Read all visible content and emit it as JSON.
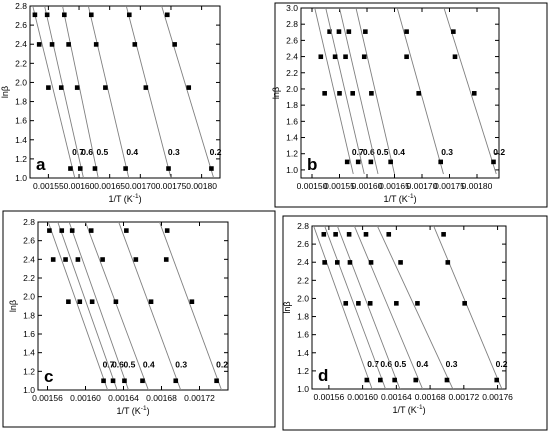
{
  "chart_data": [
    {
      "type": "scatter",
      "panel_label": "a",
      "xlabel": "1/T (K",
      "xlabel_sup": "-1",
      "xlabel_tail": ")",
      "ylabel": "lnβ",
      "xlim": [
        0.00152,
        0.00183
      ],
      "ylim": [
        1.0,
        2.8
      ],
      "xticks": [
        0.00155,
        0.0016,
        0.00165,
        0.0017,
        0.00175,
        0.0018
      ],
      "xtick_labels": [
        "0.00155",
        "0.00160",
        "0.00165",
        "0.00170",
        "0.00175",
        "0.00180"
      ],
      "yticks": [
        1.0,
        1.2,
        1.4,
        1.6,
        1.8,
        2.0,
        2.2,
        2.4,
        2.6,
        2.8
      ],
      "ytick_labels": [
        "1.0",
        "1.2",
        "1.4",
        "1.6",
        "1.8",
        "2.0",
        "2.2",
        "2.4",
        "2.6",
        "2.8"
      ],
      "series": [
        {
          "name": "0.7",
          "points": [
            [
              0.001528,
              2.708
            ],
            [
              0.001535,
              2.398
            ],
            [
              0.00155,
              1.946
            ],
            [
              0.001586,
              1.099
            ]
          ],
          "fit": [
            [
              0.001515,
              3.05
            ],
            [
              0.001595,
              0.95
            ]
          ]
        },
        {
          "name": "0.6",
          "points": [
            [
              0.001548,
              2.708
            ],
            [
              0.001556,
              2.398
            ],
            [
              0.001571,
              1.946
            ],
            [
              0.001602,
              1.099
            ]
          ],
          "fit": [
            [
              0.001535,
              3.05
            ],
            [
              0.001609,
              0.95
            ]
          ]
        },
        {
          "name": "0.5",
          "points": [
            [
              0.001576,
              2.708
            ],
            [
              0.001583,
              2.398
            ],
            [
              0.001597,
              1.946
            ],
            [
              0.001626,
              1.099
            ]
          ],
          "fit": [
            [
              0.001565,
              3.05
            ],
            [
              0.001633,
              0.95
            ]
          ]
        },
        {
          "name": "0.4",
          "points": [
            [
              0.00162,
              2.708
            ],
            [
              0.001628,
              2.398
            ],
            [
              0.001643,
              1.946
            ],
            [
              0.001676,
              1.099
            ]
          ],
          "fit": [
            [
              0.001606,
              3.05
            ],
            [
              0.001683,
              0.95
            ]
          ]
        },
        {
          "name": "0.3",
          "points": [
            [
              0.001682,
              2.708
            ],
            [
              0.001691,
              2.398
            ],
            [
              0.001709,
              1.946
            ],
            [
              0.001746,
              1.099
            ]
          ],
          "fit": [
            [
              0.001667,
              3.05
            ],
            [
              0.001752,
              0.95
            ]
          ]
        },
        {
          "name": "0.2",
          "points": [
            [
              0.001744,
              2.708
            ],
            [
              0.001756,
              2.398
            ],
            [
              0.001779,
              1.946
            ],
            [
              0.001816,
              1.099
            ]
          ],
          "fit": [
            [
              0.001723,
              3.05
            ],
            [
              0.001822,
              0.95
            ]
          ]
        }
      ]
    },
    {
      "type": "scatter",
      "panel_label": "b",
      "xlabel": "1/T (K",
      "xlabel_sup": "-1",
      "xlabel_tail": ")",
      "ylabel": "lnβ",
      "xlim": [
        0.00148,
        0.00184
      ],
      "ylim": [
        0.9,
        3.0
      ],
      "xticks": [
        0.0015,
        0.00155,
        0.0016,
        0.00165,
        0.0017,
        0.00175,
        0.0018
      ],
      "xtick_labels": [
        "0.00150",
        "0.00155",
        "0.00160",
        "0.00165",
        "0.00170",
        "0.00175",
        "0.00180"
      ],
      "yticks": [
        1.0,
        1.2,
        1.4,
        1.6,
        1.8,
        2.0,
        2.2,
        2.4,
        2.6,
        2.8,
        3.0
      ],
      "ytick_labels": [
        "1.0",
        "1.2",
        "1.4",
        "1.6",
        "1.8",
        "2.0",
        "2.2",
        "2.4",
        "2.6",
        "2.8",
        "3.0"
      ],
      "series": [
        {
          "name": "0.7",
          "points": [
            [
              0.001532,
              2.708
            ],
            [
              0.001516,
              2.398
            ],
            [
              0.001523,
              1.946
            ],
            [
              0.001564,
              1.099
            ]
          ],
          "fit": [
            [
              0.001505,
              3.0
            ],
            [
              0.001575,
              0.95
            ]
          ]
        },
        {
          "name": "0.6",
          "points": [
            [
              0.001549,
              2.708
            ],
            [
              0.001542,
              2.398
            ],
            [
              0.00155,
              1.946
            ],
            [
              0.001584,
              1.099
            ]
          ],
          "fit": [
            [
              0.001525,
              3.0
            ],
            [
              0.001595,
              0.95
            ]
          ]
        },
        {
          "name": "0.5",
          "points": [
            [
              0.001567,
              2.708
            ],
            [
              0.001561,
              2.398
            ],
            [
              0.001574,
              1.946
            ],
            [
              0.001607,
              1.099
            ]
          ],
          "fit": [
            [
              0.00155,
              3.0
            ],
            [
              0.00162,
              0.95
            ]
          ]
        },
        {
          "name": "0.4",
          "points": [
            [
              0.001597,
              2.708
            ],
            [
              0.001595,
              2.398
            ],
            [
              0.001608,
              1.946
            ],
            [
              0.001643,
              1.099
            ]
          ],
          "fit": [
            [
              0.00158,
              3.0
            ],
            [
              0.00165,
              0.95
            ]
          ]
        },
        {
          "name": "0.3",
          "points": [
            [
              0.001672,
              2.708
            ],
            [
              0.001672,
              2.398
            ],
            [
              0.001694,
              1.946
            ],
            [
              0.001734,
              1.099
            ]
          ],
          "fit": [
            [
              0.001655,
              3.0
            ],
            [
              0.001739,
              0.95
            ]
          ]
        },
        {
          "name": "0.2",
          "points": [
            [
              0.001757,
              2.708
            ],
            [
              0.00176,
              2.398
            ],
            [
              0.001795,
              1.946
            ],
            [
              0.00183,
              1.099
            ]
          ],
          "fit": [
            [
              0.00174,
              3.0
            ],
            [
              0.001835,
              0.95
            ]
          ]
        }
      ]
    },
    {
      "type": "scatter",
      "panel_label": "c",
      "xlabel": "1/T (K",
      "xlabel_sup": "-1",
      "xlabel_tail": ")",
      "ylabel": "lnβ",
      "xlim": [
        0.00155,
        0.00175
      ],
      "ylim": [
        1.0,
        2.8
      ],
      "xticks": [
        0.00156,
        0.0016,
        0.00164,
        0.00168,
        0.00172
      ],
      "xtick_labels": [
        "0.00156",
        "0.00160",
        "0.00164",
        "0.00168",
        "0.00172"
      ],
      "yticks": [
        1.0,
        1.2,
        1.4,
        1.6,
        1.8,
        2.0,
        2.2,
        2.4,
        2.6,
        2.8
      ],
      "ytick_labels": [
        "1.0",
        "1.2",
        "1.4",
        "1.6",
        "1.8",
        "2.0",
        "2.2",
        "2.4",
        "2.6",
        "2.8"
      ],
      "series": [
        {
          "name": "0.7",
          "points": [
            [
              0.001562,
              2.708
            ],
            [
              0.001566,
              2.398
            ],
            [
              0.001582,
              1.946
            ],
            [
              0.001619,
              1.099
            ]
          ],
          "fit": [
            [
              0.001558,
              2.88
            ],
            [
              0.001625,
              0.95
            ]
          ]
        },
        {
          "name": "0.6",
          "points": [
            [
              0.001575,
              2.708
            ],
            [
              0.001579,
              2.398
            ],
            [
              0.001594,
              1.946
            ],
            [
              0.001629,
              1.099
            ]
          ],
          "fit": [
            [
              0.001568,
              2.88
            ],
            [
              0.001635,
              0.95
            ]
          ]
        },
        {
          "name": "0.5",
          "points": [
            [
              0.001586,
              2.708
            ],
            [
              0.001592,
              2.398
            ],
            [
              0.001607,
              1.946
            ],
            [
              0.001641,
              1.099
            ]
          ],
          "fit": [
            [
              0.00158,
              2.88
            ],
            [
              0.001647,
              0.95
            ]
          ]
        },
        {
          "name": "0.4",
          "points": [
            [
              0.001606,
              2.708
            ],
            [
              0.001618,
              2.398
            ],
            [
              0.001632,
              1.946
            ],
            [
              0.00166,
              1.099
            ]
          ],
          "fit": [
            [
              0.001597,
              2.88
            ],
            [
              0.001668,
              0.95
            ]
          ]
        },
        {
          "name": "0.3",
          "points": [
            [
              0.001643,
              2.708
            ],
            [
              0.001653,
              2.398
            ],
            [
              0.001669,
              1.946
            ],
            [
              0.001695,
              1.099
            ]
          ],
          "fit": [
            [
              0.001632,
              2.88
            ],
            [
              0.001702,
              0.95
            ]
          ]
        },
        {
          "name": "0.2",
          "points": [
            [
              0.001686,
              2.708
            ],
            [
              0.001685,
              2.398
            ],
            [
              0.001712,
              1.946
            ],
            [
              0.001738,
              1.099
            ]
          ],
          "fit": [
            [
              0.001675,
              2.88
            ],
            [
              0.001745,
              0.95
            ]
          ]
        }
      ]
    },
    {
      "type": "scatter",
      "panel_label": "d",
      "xlabel": "1/T (K",
      "xlabel_sup": "-1",
      "xlabel_tail": ")",
      "ylabel": "lnβ",
      "xlim": [
        0.00154,
        0.00177
      ],
      "ylim": [
        1.0,
        2.8
      ],
      "xticks": [
        0.00156,
        0.0016,
        0.00164,
        0.00168,
        0.00172,
        0.00176
      ],
      "xtick_labels": [
        "0.00156",
        "0.00160",
        "0.00164",
        "0.00168",
        "0.00172",
        "0.00176"
      ],
      "yticks": [
        1.0,
        1.2,
        1.4,
        1.6,
        1.8,
        2.0,
        2.2,
        2.4,
        2.6,
        2.8
      ],
      "ytick_labels": [
        "1.0",
        "1.2",
        "1.4",
        "1.6",
        "1.8",
        "2.0",
        "2.2",
        "2.4",
        "2.6",
        "2.8"
      ],
      "series": [
        {
          "name": "0.7",
          "points": [
            [
              0.001554,
              2.708
            ],
            [
              0.001555,
              2.398
            ],
            [
              0.00158,
              1.946
            ],
            [
              0.001605,
              1.099
            ]
          ],
          "fit": [
            [
              0.00154,
              2.85
            ],
            [
              0.001612,
              0.98
            ]
          ]
        },
        {
          "name": "0.6",
          "points": [
            [
              0.001568,
              2.708
            ],
            [
              0.00157,
              2.398
            ],
            [
              0.001595,
              1.946
            ],
            [
              0.001621,
              1.099
            ]
          ],
          "fit": [
            [
              0.001553,
              2.85
            ],
            [
              0.001628,
              0.98
            ]
          ]
        },
        {
          "name": "0.5",
          "points": [
            [
              0.001584,
              2.708
            ],
            [
              0.001585,
              2.398
            ],
            [
              0.001609,
              1.946
            ],
            [
              0.001638,
              1.099
            ]
          ],
          "fit": [
            [
              0.001568,
              2.85
            ],
            [
              0.001645,
              0.98
            ]
          ]
        },
        {
          "name": "0.4",
          "points": [
            [
              0.001604,
              2.708
            ],
            [
              0.00161,
              2.398
            ],
            [
              0.00164,
              1.946
            ],
            [
              0.001663,
              1.099
            ]
          ],
          "fit": [
            [
              0.001588,
              2.85
            ],
            [
              0.001672,
              0.98
            ]
          ]
        },
        {
          "name": "0.3",
          "points": [
            [
              0.001631,
              2.708
            ],
            [
              0.001645,
              2.398
            ],
            [
              0.001665,
              1.946
            ],
            [
              0.0017,
              1.099
            ]
          ],
          "fit": [
            [
              0.001615,
              2.85
            ],
            [
              0.001708,
              0.98
            ]
          ]
        },
        {
          "name": "0.2",
          "points": [
            [
              0.001696,
              2.708
            ],
            [
              0.001701,
              2.398
            ],
            [
              0.001721,
              1.946
            ],
            [
              0.001759,
              1.099
            ]
          ],
          "fit": [
            [
              0.001682,
              2.85
            ],
            [
              0.001766,
              0.98
            ]
          ]
        }
      ]
    }
  ]
}
